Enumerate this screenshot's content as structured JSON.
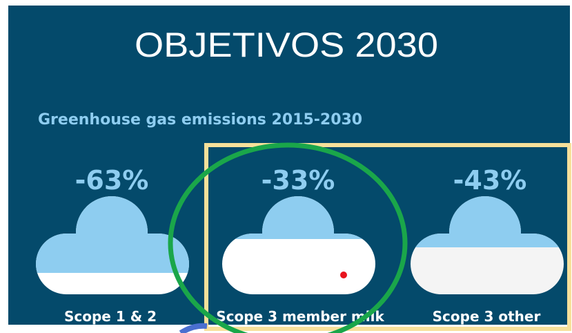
{
  "title": "OBJETIVOS 2030",
  "subtitle": "Greenhouse gas emissions 2015-2030",
  "items": [
    {
      "value": "-63%",
      "label": "Scope 1 & 2"
    },
    {
      "value": "-33%",
      "label": "Scope 3 member milk"
    },
    {
      "value": "-43%",
      "label": "Scope 3 other"
    }
  ]
}
